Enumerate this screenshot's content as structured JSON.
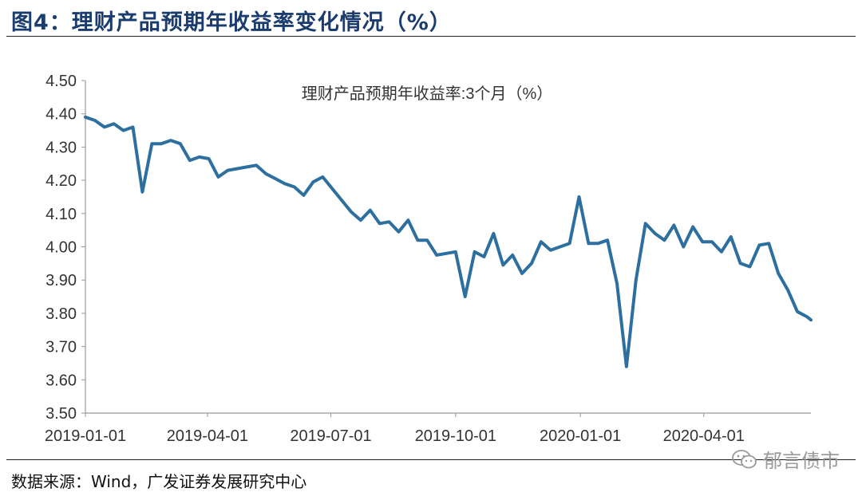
{
  "header": {
    "title": "图4：理财产品预期年收益率变化情况（%）"
  },
  "footer": {
    "source": "数据来源：Wind，广发证券发展研究中心"
  },
  "watermark": {
    "text": "郁言债市",
    "icon": "wechat-icon"
  },
  "colors": {
    "line": "#2d6f9e",
    "title": "#1b3c6e"
  },
  "chart_data": {
    "type": "line",
    "title": "理财产品预期年收益率:3个月（%）",
    "xlabel": "",
    "ylabel": "",
    "ylim": [
      3.5,
      4.5
    ],
    "yticks": [
      "4.50",
      "4.40",
      "4.30",
      "4.20",
      "4.10",
      "4.00",
      "3.90",
      "3.80",
      "3.70",
      "3.60",
      "3.50"
    ],
    "xlim": [
      "2019-01-01",
      "2020-06-19"
    ],
    "xticks": [
      "2019-01-01",
      "2019-04-01",
      "2019-07-01",
      "2019-10-01",
      "2020-01-01",
      "2020-04-01"
    ],
    "grid": false,
    "legend": "none",
    "series": [
      {
        "name": "理财产品预期年收益率:3个月（%）",
        "x": [
          "2019-01-01",
          "2019-01-08",
          "2019-01-15",
          "2019-01-22",
          "2019-01-29",
          "2019-02-05",
          "2019-02-12",
          "2019-02-19",
          "2019-02-26",
          "2019-03-05",
          "2019-03-12",
          "2019-03-19",
          "2019-03-26",
          "2019-04-02",
          "2019-04-09",
          "2019-04-16",
          "2019-04-23",
          "2019-04-30",
          "2019-05-07",
          "2019-05-14",
          "2019-05-21",
          "2019-05-28",
          "2019-06-04",
          "2019-06-11",
          "2019-06-18",
          "2019-06-25",
          "2019-07-02",
          "2019-07-09",
          "2019-07-16",
          "2019-07-23",
          "2019-07-30",
          "2019-08-06",
          "2019-08-13",
          "2019-08-20",
          "2019-08-27",
          "2019-09-03",
          "2019-09-10",
          "2019-09-17",
          "2019-09-24",
          "2019-10-01",
          "2019-10-08",
          "2019-10-15",
          "2019-10-22",
          "2019-10-29",
          "2019-11-05",
          "2019-11-12",
          "2019-11-19",
          "2019-11-26",
          "2019-12-03",
          "2019-12-10",
          "2019-12-17",
          "2019-12-24",
          "2019-12-31",
          "2020-01-07",
          "2020-01-14",
          "2020-01-21",
          "2020-01-28",
          "2020-02-04",
          "2020-02-11",
          "2020-02-18",
          "2020-02-25",
          "2020-03-03",
          "2020-03-10",
          "2020-03-17",
          "2020-03-24",
          "2020-03-31",
          "2020-04-07",
          "2020-04-14",
          "2020-04-21",
          "2020-04-28",
          "2020-05-05",
          "2020-05-12",
          "2020-05-19",
          "2020-05-26",
          "2020-06-02",
          "2020-06-09",
          "2020-06-16",
          "2020-06-19"
        ],
        "values": [
          4.39,
          4.38,
          4.36,
          4.37,
          4.35,
          4.36,
          4.165,
          4.31,
          4.31,
          4.32,
          4.31,
          4.26,
          4.27,
          4.265,
          4.21,
          4.23,
          4.235,
          4.24,
          4.245,
          4.22,
          4.205,
          4.19,
          4.18,
          4.155,
          4.195,
          4.21,
          4.175,
          4.14,
          4.105,
          4.08,
          4.11,
          4.07,
          4.075,
          4.045,
          4.08,
          4.02,
          4.02,
          3.975,
          3.98,
          3.985,
          3.85,
          3.985,
          3.97,
          4.04,
          3.945,
          3.975,
          3.92,
          3.95,
          4.015,
          3.99,
          4.0,
          4.01,
          4.15,
          4.01,
          4.01,
          4.02,
          3.89,
          3.64,
          3.9,
          4.07,
          4.04,
          4.02,
          4.065,
          4.0,
          4.06,
          4.015,
          4.015,
          3.985,
          4.03,
          3.95,
          3.94,
          4.005,
          4.01,
          3.92,
          3.87,
          3.805,
          3.79,
          3.78
        ]
      }
    ]
  }
}
